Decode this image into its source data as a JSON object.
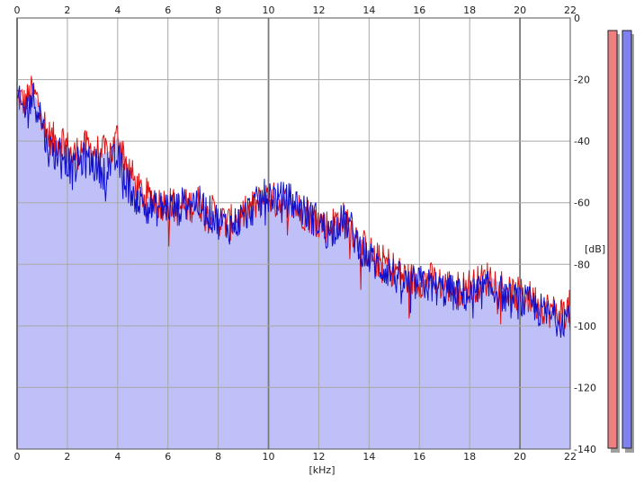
{
  "chart_data": {
    "type": "line",
    "title": "",
    "xlabel": "[kHz]",
    "ylabel": "[dB]",
    "xlim": [
      0,
      22
    ],
    "ylim": [
      -140,
      0
    ],
    "x_ticks": [
      "0",
      "2",
      "4",
      "6",
      "8",
      "10",
      "12",
      "14",
      "16",
      "18",
      "20",
      "22"
    ],
    "y_ticks": [
      "0",
      "-20",
      "-40",
      "-60",
      "-80",
      "-100",
      "-120",
      "-140"
    ],
    "grid": true,
    "background_fill": "#c0c0f8",
    "series": [
      {
        "color": "#dd1111",
        "x": [
          0,
          0.3,
          0.6,
          0.9,
          1.2,
          1.5,
          1.8,
          2.2,
          2.6,
          3.0,
          3.4,
          3.8,
          4.0,
          4.4,
          4.8,
          5.2,
          5.6,
          6.0,
          6.4,
          6.8,
          7.2,
          7.6,
          8.0,
          8.4,
          8.8,
          9.2,
          9.6,
          10.0,
          10.4,
          10.8,
          11.2,
          11.6,
          12.0,
          12.4,
          12.8,
          13.2,
          13.6,
          14.0,
          14.4,
          14.8,
          15.2,
          15.6,
          16.0,
          16.4,
          16.8,
          17.2,
          17.6,
          18.0,
          18.4,
          18.8,
          19.2,
          19.6,
          20.0,
          20.4,
          20.8,
          21.2,
          21.6,
          22.0
        ],
        "y": [
          -25,
          -28,
          -24,
          -28,
          -38,
          -40,
          -39,
          -45,
          -42,
          -43,
          -44,
          -43,
          -38,
          -48,
          -56,
          -58,
          -60,
          -60,
          -62,
          -61,
          -60,
          -62,
          -65,
          -67,
          -65,
          -63,
          -60,
          -58,
          -60,
          -60,
          -62,
          -64,
          -66,
          -68,
          -65,
          -66,
          -73,
          -76,
          -79,
          -80,
          -83,
          -85,
          -85,
          -85,
          -86,
          -87,
          -88,
          -87,
          -86,
          -84,
          -86,
          -90,
          -90,
          -91,
          -93,
          -95,
          -96,
          -94
        ]
      },
      {
        "color": "#1010cc",
        "x": [
          0,
          0.3,
          0.6,
          0.9,
          1.2,
          1.5,
          1.8,
          2.2,
          2.6,
          3.0,
          3.4,
          3.8,
          4.0,
          4.4,
          4.8,
          5.2,
          5.6,
          6.0,
          6.4,
          6.8,
          7.2,
          7.6,
          8.0,
          8.4,
          8.8,
          9.2,
          9.6,
          10.0,
          10.4,
          10.8,
          11.2,
          11.6,
          12.0,
          12.4,
          12.8,
          13.2,
          13.6,
          14.0,
          14.4,
          14.8,
          15.2,
          15.6,
          16.0,
          16.4,
          16.8,
          17.2,
          17.6,
          18.0,
          18.4,
          18.8,
          19.2,
          19.6,
          20.0,
          20.4,
          20.8,
          21.2,
          21.6,
          22.0
        ],
        "y": [
          -27,
          -30,
          -26,
          -30,
          -42,
          -44,
          -43,
          -50,
          -46,
          -47,
          -50,
          -47,
          -46,
          -54,
          -59,
          -61,
          -62,
          -61,
          -62,
          -59,
          -60,
          -63,
          -66,
          -68,
          -66,
          -63,
          -60,
          -57,
          -59,
          -59,
          -61,
          -64,
          -66,
          -70,
          -66,
          -67,
          -74,
          -78,
          -81,
          -82,
          -85,
          -87,
          -86,
          -87,
          -88,
          -89,
          -90,
          -90,
          -89,
          -88,
          -89,
          -92,
          -92,
          -93,
          -95,
          -97,
          -98,
          -96
        ]
      }
    ]
  },
  "meters": [
    {
      "color": "#f08080"
    },
    {
      "color": "#8080f0"
    }
  ]
}
